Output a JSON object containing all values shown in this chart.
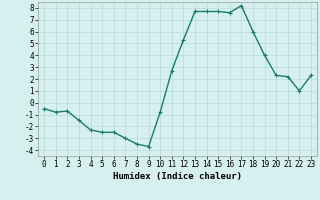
{
  "x": [
    0,
    1,
    2,
    3,
    4,
    5,
    6,
    7,
    8,
    9,
    10,
    11,
    12,
    13,
    14,
    15,
    16,
    17,
    18,
    19,
    20,
    21,
    22,
    23
  ],
  "y": [
    -0.5,
    -0.8,
    -0.7,
    -1.5,
    -2.3,
    -2.5,
    -2.5,
    -3.0,
    -3.5,
    -3.7,
    -0.8,
    2.7,
    5.3,
    7.7,
    7.7,
    7.7,
    7.6,
    8.2,
    6.0,
    4.0,
    2.3,
    2.2,
    1.0,
    2.3
  ],
  "line_color": "#1a7a6e",
  "marker": "+",
  "marker_size": 3,
  "bg_color": "#d6f0ef",
  "grid_color": "#b8dbd8",
  "xlabel": "Humidex (Indice chaleur)",
  "xlim": [
    -0.5,
    23.5
  ],
  "ylim": [
    -4.5,
    8.5
  ],
  "yticks": [
    -4,
    -3,
    -2,
    -1,
    0,
    1,
    2,
    3,
    4,
    5,
    6,
    7,
    8
  ],
  "xticks": [
    0,
    1,
    2,
    3,
    4,
    5,
    6,
    7,
    8,
    9,
    10,
    11,
    12,
    13,
    14,
    15,
    16,
    17,
    18,
    19,
    20,
    21,
    22,
    23
  ],
  "tick_fontsize": 5.5,
  "label_fontsize": 6.5,
  "linewidth": 1.0,
  "marker_edge_width": 0.8
}
